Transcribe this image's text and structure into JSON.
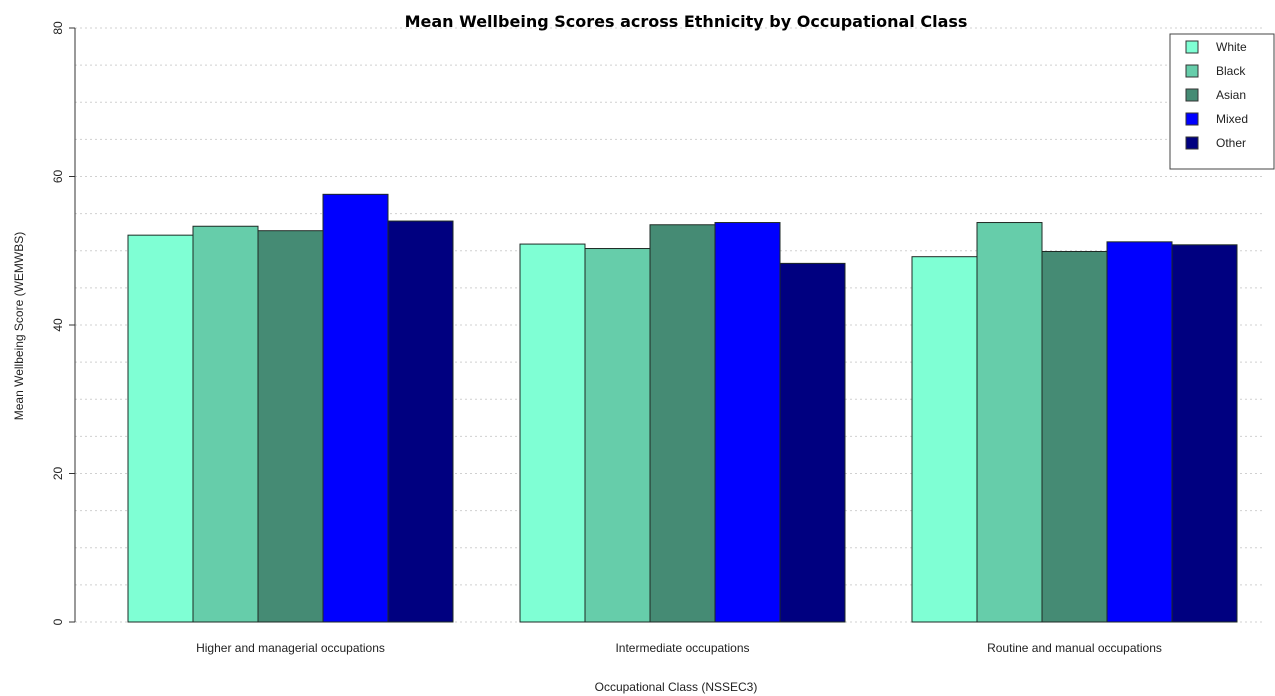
{
  "chart_data": {
    "type": "bar",
    "title": "Mean Wellbeing Scores across Ethnicity by Occupational Class",
    "xlabel": "Occupational Class (NSSEC3)",
    "ylabel": "Mean Wellbeing Score (WEMWBS)",
    "ylim": [
      0,
      80
    ],
    "yticks": [
      "0",
      "20",
      "40",
      "60",
      "80"
    ],
    "grid": true,
    "legend_position": "top-right",
    "categories": [
      "Higher and managerial occupations",
      "Intermediate occupations",
      "Routine and manual occupations"
    ],
    "series": [
      {
        "name": "White",
        "color": "#7fffd4",
        "values": [
          52.1,
          50.9,
          49.2
        ]
      },
      {
        "name": "Black",
        "color": "#66cdaa",
        "values": [
          53.3,
          50.3,
          53.8
        ]
      },
      {
        "name": "Asian",
        "color": "#458b74",
        "values": [
          52.7,
          53.5,
          49.9
        ]
      },
      {
        "name": "Mixed",
        "color": "#0000ff",
        "values": [
          57.6,
          53.8,
          51.2
        ]
      },
      {
        "name": "Other",
        "color": "#000080",
        "values": [
          54.0,
          48.3,
          50.8
        ]
      }
    ]
  }
}
